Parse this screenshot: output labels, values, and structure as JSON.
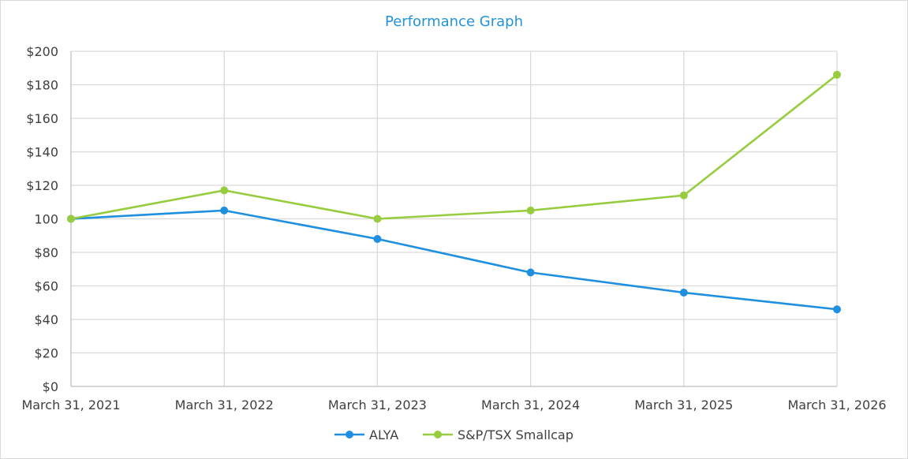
{
  "chart_data": {
    "type": "line",
    "title": "Performance Graph",
    "categories": [
      "March 31, 2021",
      "March 31, 2022",
      "March 31, 2023",
      "March 31, 2024",
      "March 31, 2025",
      "March 31, 2026"
    ],
    "y_ticks": [
      "$0",
      "$20",
      "$40",
      "$60",
      "$80",
      "100",
      "$120",
      "$140",
      "$160",
      "$180",
      "$200"
    ],
    "ylim": [
      0,
      200
    ],
    "grid": true,
    "legend_position": "bottom",
    "series": [
      {
        "name": "ALYA",
        "color": "#1f8fe0",
        "values": [
          100,
          105,
          88,
          68,
          56,
          46
        ]
      },
      {
        "name": "S&P/TSX Smallcap",
        "color": "#96cc3e",
        "values": [
          100,
          117,
          100,
          105,
          114,
          186
        ]
      }
    ]
  }
}
